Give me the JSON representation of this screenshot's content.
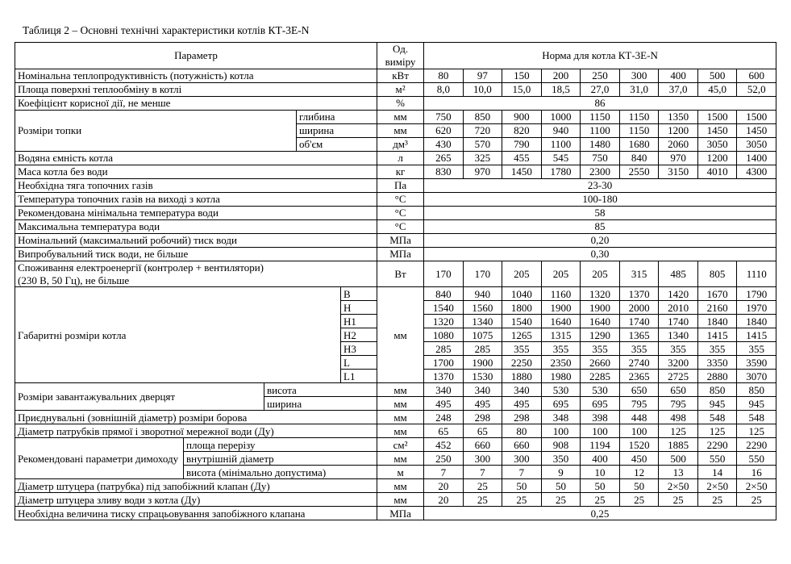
{
  "title": "Таблиця 2 – Основні технічні характеристики котлів КТ-3Е-N",
  "table": {
    "rows": [
      [
        {
          "t": "Параметр",
          "cs": 5
        },
        {
          "t": "Од. виміру"
        },
        {
          "t": "Норма для котла КТ-3Е-N",
          "cs": 9
        }
      ],
      [
        {
          "t": "Номінальна теплопродуктивність (потужність) котла",
          "cs": 5,
          "al": "l"
        },
        {
          "t": "кВт"
        },
        "80",
        "97",
        "150",
        "200",
        "250",
        "300",
        "400",
        "500",
        "600"
      ],
      [
        {
          "t": "Площа поверхні теплообміну в котлі",
          "cs": 5,
          "al": "l"
        },
        {
          "t": "м²"
        },
        "8,0",
        "10,0",
        "15,0",
        "18,5",
        "27,0",
        "31,0",
        "37,0",
        "45,0",
        "52,0"
      ],
      [
        {
          "t": "Коефіцієнт корисної дії, не менше",
          "cs": 5,
          "al": "l"
        },
        {
          "t": "%"
        },
        {
          "t": "86",
          "cs": 9
        }
      ],
      [
        {
          "t": "Розміри топки",
          "cs": 3,
          "rs": 3,
          "al": "l"
        },
        {
          "t": "глибина",
          "cs": 2,
          "al": "l"
        },
        {
          "t": "мм"
        },
        "750",
        "850",
        "900",
        "1000",
        "1150",
        "1150",
        "1350",
        "1500",
        "1500"
      ],
      [
        {
          "t": "ширина",
          "cs": 2,
          "al": "l"
        },
        {
          "t": "мм"
        },
        "620",
        "720",
        "820",
        "940",
        "1100",
        "1150",
        "1200",
        "1450",
        "1450"
      ],
      [
        {
          "t": "об'єм",
          "cs": 2,
          "al": "l"
        },
        {
          "t": "дм³"
        },
        "430",
        "570",
        "790",
        "1100",
        "1480",
        "1680",
        "2060",
        "3050",
        "3050"
      ],
      [
        {
          "t": "Водяна ємність котла",
          "cs": 5,
          "al": "l"
        },
        {
          "t": "л"
        },
        "265",
        "325",
        "455",
        "545",
        "750",
        "840",
        "970",
        "1200",
        "1400"
      ],
      [
        {
          "t": "Маса котла без води",
          "cs": 5,
          "al": "l"
        },
        {
          "t": "кг"
        },
        "830",
        "970",
        "1450",
        "1780",
        "2300",
        "2550",
        "3150",
        "4010",
        "4300"
      ],
      [
        {
          "t": "Необхідна тяга топочних газів",
          "cs": 5,
          "al": "l"
        },
        {
          "t": "Па"
        },
        {
          "t": "23-30",
          "cs": 9
        }
      ],
      [
        {
          "t": "Температура топочних газів на виході з котла",
          "cs": 5,
          "al": "l"
        },
        {
          "t": "°С"
        },
        {
          "t": "100-180",
          "cs": 9
        }
      ],
      [
        {
          "t": "Рекомендована мінімальна температура води",
          "cs": 5,
          "al": "l"
        },
        {
          "t": "°С"
        },
        {
          "t": "58",
          "cs": 9
        }
      ],
      [
        {
          "t": "Максимальна температура води",
          "cs": 5,
          "al": "l"
        },
        {
          "t": "°С"
        },
        {
          "t": "85",
          "cs": 9
        }
      ],
      [
        {
          "t": "Номінальний (максимальний робочий) тиск води",
          "cs": 5,
          "al": "l"
        },
        {
          "t": "МПа"
        },
        {
          "t": "0,20",
          "cs": 9
        }
      ],
      [
        {
          "t": "Випробувальний тиск води, не більше",
          "cs": 5,
          "al": "l"
        },
        {
          "t": "МПа"
        },
        {
          "t": "0,30",
          "cs": 9
        }
      ],
      [
        {
          "t": "Споживання електроенергії (контролер + вентилятори)\n(230 В, 50 Гц), не більше",
          "cs": 5,
          "al": "l"
        },
        {
          "t": "Вт"
        },
        "170",
        "170",
        "205",
        "205",
        "205",
        "315",
        "485",
        "805",
        "1110"
      ],
      [
        {
          "t": "Габаритні розміри котла",
          "cs": 4,
          "rs": 7,
          "al": "l"
        },
        {
          "t": "B",
          "al": "l"
        },
        {
          "t": "мм",
          "rs": 7
        },
        "840",
        "940",
        "1040",
        "1160",
        "1320",
        "1370",
        "1420",
        "1670",
        "1790"
      ],
      [
        {
          "t": "H",
          "al": "l"
        },
        "1540",
        "1560",
        "1800",
        "1900",
        "1900",
        "2000",
        "2010",
        "2160",
        "1970"
      ],
      [
        {
          "t": "H1",
          "al": "l"
        },
        "1320",
        "1340",
        "1540",
        "1640",
        "1640",
        "1740",
        "1740",
        "1840",
        "1840"
      ],
      [
        {
          "t": "H2",
          "al": "l"
        },
        "1080",
        "1075",
        "1265",
        "1315",
        "1290",
        "1365",
        "1340",
        "1415",
        "1415"
      ],
      [
        {
          "t": "H3",
          "al": "l"
        },
        "285",
        "285",
        "355",
        "355",
        "355",
        "355",
        "355",
        "355",
        "355"
      ],
      [
        {
          "t": "L",
          "al": "l"
        },
        "1700",
        "1900",
        "2250",
        "2350",
        "2660",
        "2740",
        "3200",
        "3350",
        "3590"
      ],
      [
        {
          "t": "L1",
          "al": "l"
        },
        "1370",
        "1530",
        "1880",
        "1980",
        "2285",
        "2365",
        "2725",
        "2880",
        "3070"
      ],
      [
        {
          "t": "Розміри завантажувальних дверцят",
          "cs": 2,
          "rs": 2,
          "al": "l"
        },
        {
          "t": "висота",
          "cs": 3,
          "al": "l"
        },
        {
          "t": "мм"
        },
        "340",
        "340",
        "340",
        "530",
        "530",
        "650",
        "650",
        "850",
        "850"
      ],
      [
        {
          "t": "ширина",
          "cs": 3,
          "al": "l"
        },
        {
          "t": "мм"
        },
        "495",
        "495",
        "495",
        "695",
        "695",
        "795",
        "795",
        "945",
        "945"
      ],
      [
        {
          "t": "Приєднувальні (зовнішній діаметр) розміри борова",
          "cs": 5,
          "al": "l"
        },
        {
          "t": "мм"
        },
        "248",
        "298",
        "298",
        "348",
        "398",
        "448",
        "498",
        "548",
        "548"
      ],
      [
        {
          "t": "Діаметр патрубків прямої і зворотної мережної води (Ду)",
          "cs": 5,
          "al": "l"
        },
        {
          "t": "мм"
        },
        "65",
        "65",
        "80",
        "100",
        "100",
        "100",
        "125",
        "125",
        "125"
      ],
      [
        {
          "t": "Рекомендовані параметри димоходу",
          "rs": 3,
          "al": "l"
        },
        {
          "t": "площа перерізу",
          "cs": 4,
          "al": "l"
        },
        {
          "t": "см²"
        },
        "452",
        "660",
        "660",
        "908",
        "1194",
        "1520",
        "1885",
        "2290",
        "2290"
      ],
      [
        {
          "t": "внутрішній діаметр",
          "cs": 4,
          "al": "l"
        },
        {
          "t": "мм"
        },
        "250",
        "300",
        "300",
        "350",
        "400",
        "450",
        "500",
        "550",
        "550"
      ],
      [
        {
          "t": "висота (мінімально допустима)",
          "cs": 4,
          "al": "l"
        },
        {
          "t": "м"
        },
        "7",
        "7",
        "7",
        "9",
        "10",
        "12",
        "13",
        "14",
        "16"
      ],
      [
        {
          "t": "Діаметр штуцера (патрубка) під запобіжний клапан (Ду)",
          "cs": 5,
          "al": "l"
        },
        {
          "t": "мм"
        },
        "20",
        "25",
        "50",
        "50",
        "50",
        "50",
        "2×50",
        "2×50",
        "2×50"
      ],
      [
        {
          "t": "Діаметр штуцера зливу води з котла (Ду)",
          "cs": 5,
          "al": "l"
        },
        {
          "t": "мм"
        },
        "20",
        "25",
        "25",
        "25",
        "25",
        "25",
        "25",
        "25",
        "25"
      ],
      [
        {
          "t": "Необхідна величина тиску спрацьовування запобіжного клапана",
          "cs": 5,
          "al": "l"
        },
        {
          "t": "МПа"
        },
        {
          "t": "0,25",
          "cs": 9
        }
      ]
    ]
  }
}
